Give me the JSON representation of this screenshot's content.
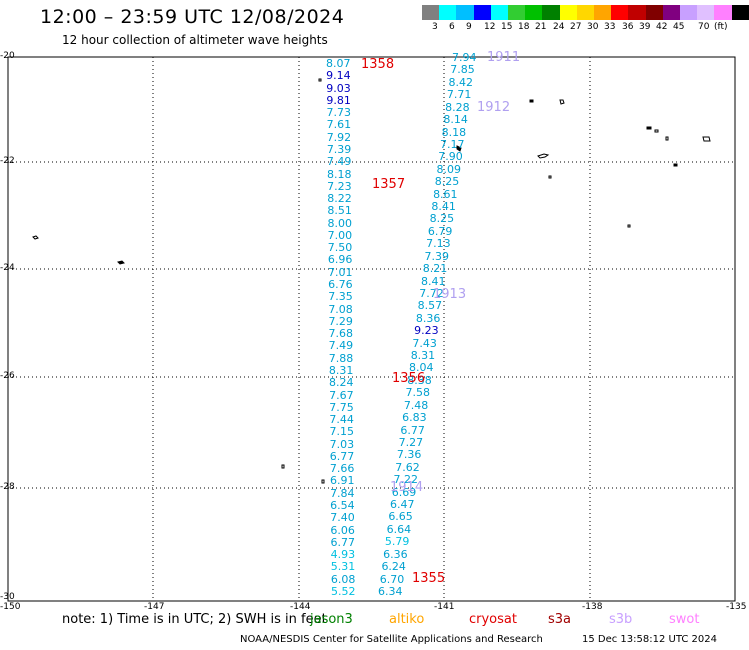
{
  "title": "12:00 – 23:59 UTC 12/08/2024",
  "subtitle": "12 hour collection of altimeter wave heights",
  "colorbar": {
    "colors": [
      "#808080",
      "#00ffff",
      "#00bfff",
      "#0000ff",
      "#00ffff",
      "#32cd32",
      "#00c000",
      "#008000",
      "#ffff00",
      "#ffd700",
      "#ffa500",
      "#ff0000",
      "#c00000",
      "#800000",
      "#800080",
      "#c8a0ff",
      "#e0c0ff",
      "#ff80ff",
      "#000000"
    ],
    "labels": [
      "3",
      "6",
      "9",
      "12",
      "15",
      "18",
      "21",
      "24",
      "27",
      "30",
      "33",
      "36",
      "39",
      "42",
      "45",
      "70",
      "(ft)"
    ]
  },
  "lat_labels": [
    "-20",
    "-22",
    "-24",
    "-26",
    "-28",
    "-30"
  ],
  "lon_labels": [
    "-150",
    "-147",
    "-144",
    "-141",
    "-138",
    "-135"
  ],
  "track_west": [
    {
      "v": "8.07",
      "c": "#00a0d0"
    },
    {
      "v": "9.14",
      "c": "#0000c0"
    },
    {
      "v": "9.03",
      "c": "#0000c0"
    },
    {
      "v": "9.81",
      "c": "#0000c0"
    },
    {
      "v": "7.73",
      "c": "#00a0d0"
    },
    {
      "v": "7.61",
      "c": "#00a0d0"
    },
    {
      "v": "7.92",
      "c": "#00a0d0"
    },
    {
      "v": "7.39",
      "c": "#00a0d0"
    },
    {
      "v": "7.49",
      "c": "#00a0d0"
    },
    {
      "v": "8.18",
      "c": "#00a0d0"
    },
    {
      "v": "7.23",
      "c": "#00a0d0"
    },
    {
      "v": "8.22",
      "c": "#00a0d0"
    },
    {
      "v": "8.51",
      "c": "#00a0d0"
    },
    {
      "v": "8.00",
      "c": "#00a0d0"
    },
    {
      "v": "7.00",
      "c": "#00a0d0"
    },
    {
      "v": "7.50",
      "c": "#00a0d0"
    },
    {
      "v": "6.96",
      "c": "#00a0d0"
    },
    {
      "v": "7.01",
      "c": "#00a0d0"
    },
    {
      "v": "6.76",
      "c": "#00a0d0"
    },
    {
      "v": "7.35",
      "c": "#00a0d0"
    },
    {
      "v": "7.08",
      "c": "#00a0d0"
    },
    {
      "v": "7.29",
      "c": "#00a0d0"
    },
    {
      "v": "7.68",
      "c": "#00a0d0"
    },
    {
      "v": "7.49",
      "c": "#00a0d0"
    },
    {
      "v": "7.88",
      "c": "#00a0d0"
    },
    {
      "v": "8.31",
      "c": "#00a0d0"
    },
    {
      "v": "8.24",
      "c": "#00a0d0"
    },
    {
      "v": "7.67",
      "c": "#00a0d0"
    },
    {
      "v": "7.75",
      "c": "#00a0d0"
    },
    {
      "v": "7.44",
      "c": "#00a0d0"
    },
    {
      "v": "7.15",
      "c": "#00a0d0"
    },
    {
      "v": "7.03",
      "c": "#00a0d0"
    },
    {
      "v": "6.77",
      "c": "#00a0d0"
    },
    {
      "v": "7.66",
      "c": "#00a0d0"
    },
    {
      "v": "6.91",
      "c": "#00a0d0"
    },
    {
      "v": "7.84",
      "c": "#00a0d0"
    },
    {
      "v": "6.54",
      "c": "#00a0d0"
    },
    {
      "v": "7.40",
      "c": "#00a0d0"
    },
    {
      "v": "6.06",
      "c": "#00a0d0"
    },
    {
      "v": "6.77",
      "c": "#00a0d0"
    },
    {
      "v": "4.93",
      "c": "#00c0e0"
    },
    {
      "v": "5.31",
      "c": "#00c0e0"
    },
    {
      "v": "6.08",
      "c": "#00a0d0"
    },
    {
      "v": "5.52",
      "c": "#00c0e0"
    }
  ],
  "track_east": [
    {
      "v": "7.94",
      "c": "#00a0d0"
    },
    {
      "v": "7.85",
      "c": "#00a0d0"
    },
    {
      "v": "8.42",
      "c": "#00a0d0"
    },
    {
      "v": "7.71",
      "c": "#00a0d0"
    },
    {
      "v": "8.28",
      "c": "#00a0d0"
    },
    {
      "v": "8.14",
      "c": "#00a0d0"
    },
    {
      "v": "8.18",
      "c": "#00a0d0"
    },
    {
      "v": "7.17",
      "c": "#00a0d0"
    },
    {
      "v": "7.90",
      "c": "#00a0d0"
    },
    {
      "v": "8.09",
      "c": "#00a0d0"
    },
    {
      "v": "8.25",
      "c": "#00a0d0"
    },
    {
      "v": "8.61",
      "c": "#00a0d0"
    },
    {
      "v": "8.41",
      "c": "#00a0d0"
    },
    {
      "v": "8.25",
      "c": "#00a0d0"
    },
    {
      "v": "6.79",
      "c": "#00a0d0"
    },
    {
      "v": "7.13",
      "c": "#00a0d0"
    },
    {
      "v": "7.39",
      "c": "#00a0d0"
    },
    {
      "v": "8.21",
      "c": "#00a0d0"
    },
    {
      "v": "8.41",
      "c": "#00a0d0"
    },
    {
      "v": "7.72",
      "c": "#00a0d0"
    },
    {
      "v": "8.57",
      "c": "#00a0d0"
    },
    {
      "v": "8.36",
      "c": "#00a0d0"
    },
    {
      "v": "9.23",
      "c": "#0000c0"
    },
    {
      "v": "7.43",
      "c": "#00a0d0"
    },
    {
      "v": "8.31",
      "c": "#00a0d0"
    },
    {
      "v": "8.04",
      "c": "#00a0d0"
    },
    {
      "v": "8.38",
      "c": "#00a0d0"
    },
    {
      "v": "7.58",
      "c": "#00a0d0"
    },
    {
      "v": "7.48",
      "c": "#00a0d0"
    },
    {
      "v": "6.83",
      "c": "#00a0d0"
    },
    {
      "v": "6.77",
      "c": "#00a0d0"
    },
    {
      "v": "7.27",
      "c": "#00a0d0"
    },
    {
      "v": "7.36",
      "c": "#00a0d0"
    },
    {
      "v": "7.62",
      "c": "#00a0d0"
    },
    {
      "v": "7.22",
      "c": "#00a0d0"
    },
    {
      "v": "6.69",
      "c": "#00a0d0"
    },
    {
      "v": "6.47",
      "c": "#00a0d0"
    },
    {
      "v": "6.65",
      "c": "#00a0d0"
    },
    {
      "v": "6.64",
      "c": "#00a0d0"
    },
    {
      "v": "5.79",
      "c": "#00c0e0"
    },
    {
      "v": "6.36",
      "c": "#00a0d0"
    },
    {
      "v": "6.24",
      "c": "#00a0d0"
    },
    {
      "v": "6.70",
      "c": "#00a0d0"
    },
    {
      "v": "6.34",
      "c": "#00a0d0"
    }
  ],
  "pass_times": [
    {
      "t": "1358",
      "c": "#e00000"
    },
    {
      "t": "1357",
      "c": "#e00000"
    },
    {
      "t": "1356",
      "c": "#e00000"
    },
    {
      "t": "1355",
      "c": "#e00000"
    },
    {
      "t": "1911",
      "c": "#b0a0f0"
    },
    {
      "t": "1912",
      "c": "#b0a0f0"
    },
    {
      "t": "1913",
      "c": "#b0a0f0"
    },
    {
      "t": "1914",
      "c": "#b0a0f0"
    }
  ],
  "note": "note:  1) Time is in UTC; 2) SWH is in feet",
  "satellites": [
    {
      "name": "jason3",
      "color": "#008000"
    },
    {
      "name": "altiko",
      "color": "#ffa500"
    },
    {
      "name": "cryosat",
      "color": "#e00000"
    },
    {
      "name": "s3a",
      "color": "#a00000"
    },
    {
      "name": "s3b",
      "color": "#c8a0ff"
    },
    {
      "name": "swot",
      "color": "#ff80ff"
    }
  ],
  "footer": "NOAA/NESDIS Center for Satellite Applications and Research",
  "footer_time": "15 Dec 13:58:12 UTC 2024"
}
